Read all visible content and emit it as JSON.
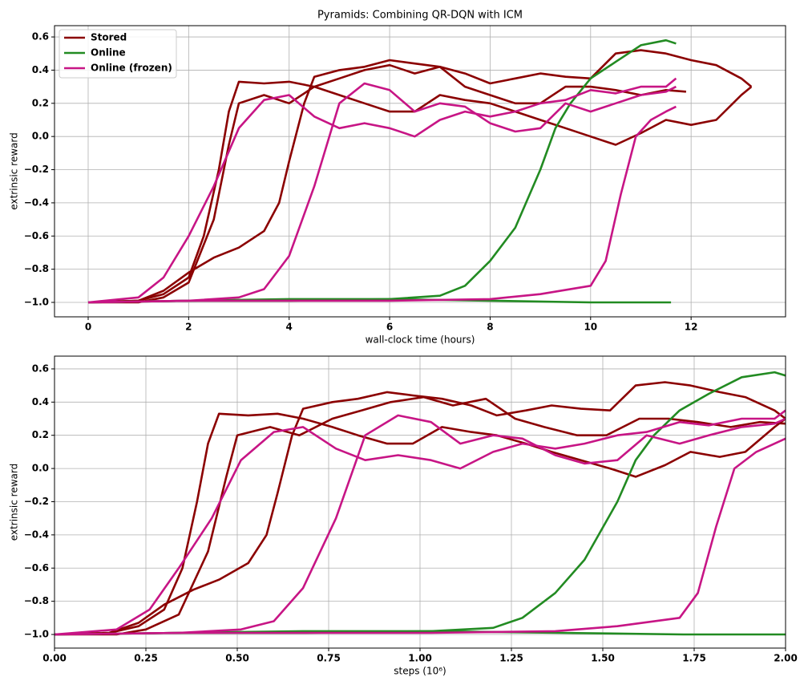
{
  "chart_data": [
    {
      "type": "line",
      "title": "Pyramids: Combining QR-DQN with ICM",
      "xlabel": "wall-clock time (hours)",
      "ylabel": "extrinsic reward",
      "xlim": [
        -0.67,
        13.88
      ],
      "ylim": [
        -1.087,
        0.668
      ],
      "xticks": [
        0,
        2,
        4,
        6,
        8,
        10,
        12
      ],
      "yticks": [
        {
          "value": -1.0,
          "label": "−1.0"
        },
        {
          "value": -0.8,
          "label": "−0.8"
        },
        {
          "value": -0.6,
          "label": "−0.6"
        },
        {
          "value": -0.4,
          "label": "−0.4"
        },
        {
          "value": -0.2,
          "label": "−0.2"
        },
        {
          "value": 0.0,
          "label": "0.0"
        },
        {
          "value": 0.2,
          "label": "0.2"
        },
        {
          "value": 0.4,
          "label": "0.4"
        },
        {
          "value": 0.6,
          "label": "0.6"
        }
      ],
      "grid": true,
      "legend": "upper left",
      "series": [
        {
          "name": "Stored",
          "color": "#8b0000",
          "runs": [
            {
              "x": [
                0,
                1,
                1.5,
                2,
                2.3,
                2.6,
                2.8,
                3,
                3.5,
                4,
                4.5,
                5,
                5.5,
                6,
                6.5,
                7,
                7.5,
                8,
                8.5,
                9,
                9.5,
                10,
                10.5,
                11,
                11.5,
                12,
                12.5,
                13,
                13.2
              ],
              "values": [
                -1,
                -0.99,
                -0.95,
                -0.85,
                -0.6,
                -0.2,
                0.15,
                0.33,
                0.32,
                0.33,
                0.3,
                0.25,
                0.2,
                0.15,
                0.15,
                0.25,
                0.22,
                0.2,
                0.15,
                0.1,
                0.05,
                0.0,
                -0.05,
                0.02,
                0.1,
                0.07,
                0.1,
                0.25,
                0.3
              ]
            },
            {
              "x": [
                0,
                1,
                1.5,
                2,
                2.5,
                2.8,
                3,
                3.5,
                4,
                4.5,
                5,
                5.5,
                6,
                6.5,
                7,
                7.5,
                8,
                8.5,
                9,
                9.5,
                10,
                10.5,
                11,
                11.5,
                11.9
              ],
              "values": [
                -1,
                -1,
                -0.97,
                -0.88,
                -0.5,
                -0.05,
                0.2,
                0.25,
                0.2,
                0.3,
                0.35,
                0.4,
                0.43,
                0.38,
                0.42,
                0.3,
                0.25,
                0.2,
                0.2,
                0.3,
                0.3,
                0.28,
                0.25,
                0.28,
                0.27
              ]
            },
            {
              "x": [
                0,
                1,
                1.5,
                2,
                2.5,
                3,
                3.5,
                3.8,
                4,
                4.3,
                4.5,
                5,
                5.5,
                6,
                6.5,
                7,
                7.5,
                8,
                8.5,
                9,
                9.5,
                10,
                10.5,
                11,
                11.5,
                12,
                12.5,
                13,
                13.2
              ],
              "values": [
                -1,
                -0.99,
                -0.93,
                -0.82,
                -0.73,
                -0.67,
                -0.57,
                -0.4,
                -0.15,
                0.2,
                0.36,
                0.4,
                0.42,
                0.46,
                0.44,
                0.42,
                0.38,
                0.32,
                0.35,
                0.38,
                0.36,
                0.35,
                0.5,
                0.52,
                0.5,
                0.46,
                0.43,
                0.35,
                0.3
              ]
            }
          ]
        },
        {
          "name": "Online",
          "color": "#228b22",
          "runs": [
            {
              "x": [
                0,
                2,
                4,
                6,
                7,
                7.5,
                8,
                8.5,
                9,
                9.3,
                9.6,
                10,
                10.5,
                11,
                11.5,
                11.7
              ],
              "values": [
                -1,
                -0.99,
                -0.98,
                -0.98,
                -0.96,
                -0.9,
                -0.75,
                -0.55,
                -0.2,
                0.05,
                0.2,
                0.35,
                0.45,
                0.55,
                0.58,
                0.56
              ]
            },
            {
              "x": [
                0,
                2,
                4,
                6,
                8,
                10,
                11.6
              ],
              "values": [
                -1,
                -0.99,
                -0.99,
                -0.98,
                -0.99,
                -1,
                -1
              ]
            }
          ]
        },
        {
          "name": "Online (frozen)",
          "color": "#c71585",
          "runs": [
            {
              "x": [
                0,
                1,
                1.5,
                2,
                2.5,
                3,
                3.5,
                4,
                4.5,
                5,
                5.5,
                6,
                6.5,
                7,
                7.5,
                8,
                8.5,
                9,
                9.5,
                10,
                10.5,
                11,
                11.5,
                11.7
              ],
              "values": [
                -1,
                -0.97,
                -0.85,
                -0.6,
                -0.3,
                0.05,
                0.22,
                0.25,
                0.12,
                0.05,
                0.08,
                0.05,
                0.0,
                0.1,
                0.15,
                0.12,
                0.15,
                0.2,
                0.22,
                0.28,
                0.26,
                0.3,
                0.3,
                0.35
              ]
            },
            {
              "x": [
                0,
                2,
                3,
                3.5,
                4,
                4.5,
                5,
                5.5,
                6,
                6.5,
                7,
                7.5,
                8,
                8.5,
                9,
                9.5,
                10,
                10.5,
                11,
                11.5,
                11.7
              ],
              "values": [
                -1,
                -0.99,
                -0.97,
                -0.92,
                -0.72,
                -0.3,
                0.2,
                0.32,
                0.28,
                0.15,
                0.2,
                0.18,
                0.08,
                0.03,
                0.05,
                0.2,
                0.15,
                0.2,
                0.25,
                0.27,
                0.3
              ]
            },
            {
              "x": [
                0,
                2,
                4,
                6,
                8,
                9,
                10,
                10.3,
                10.6,
                10.9,
                11.2,
                11.5,
                11.7
              ],
              "values": [
                -1,
                -0.99,
                -0.99,
                -0.99,
                -0.98,
                -0.95,
                -0.9,
                -0.75,
                -0.35,
                0.0,
                0.1,
                0.15,
                0.18
              ]
            }
          ]
        }
      ]
    },
    {
      "type": "line",
      "xlabel": "steps (10⁶)",
      "ylabel": "extrinsic reward",
      "xlim": [
        0,
        2
      ],
      "ylim": [
        -1.082,
        0.677
      ],
      "xticks": [
        {
          "value": 0,
          "label": "0.00"
        },
        {
          "value": 0.25,
          "label": "0.25"
        },
        {
          "value": 0.5,
          "label": "0.50"
        },
        {
          "value": 0.75,
          "label": "0.75"
        },
        {
          "value": 1,
          "label": "1.00"
        },
        {
          "value": 1.25,
          "label": "1.25"
        },
        {
          "value": 1.5,
          "label": "1.50"
        },
        {
          "value": 1.75,
          "label": "1.75"
        },
        {
          "value": 2,
          "label": "2.00"
        }
      ],
      "yticks": [
        {
          "value": -1.0,
          "label": "−1.0"
        },
        {
          "value": -0.8,
          "label": "−0.8"
        },
        {
          "value": -0.6,
          "label": "−0.6"
        },
        {
          "value": -0.4,
          "label": "−0.4"
        },
        {
          "value": -0.2,
          "label": "−0.2"
        },
        {
          "value": 0.0,
          "label": "0.0"
        },
        {
          "value": 0.2,
          "label": "0.2"
        },
        {
          "value": 0.4,
          "label": "0.4"
        },
        {
          "value": 0.6,
          "label": "0.6"
        }
      ],
      "grid": true,
      "series": [
        {
          "color": "#8b0000",
          "runs": [
            {
              "x": [
                0,
                0.15,
                0.23,
                0.3,
                0.35,
                0.39,
                0.42,
                0.45,
                0.53,
                0.61,
                0.68,
                0.76,
                0.83,
                0.91,
                0.98,
                1.06,
                1.14,
                1.21,
                1.29,
                1.36,
                1.44,
                1.52,
                1.59,
                1.67,
                1.74,
                1.82,
                1.89,
                1.97,
                2.0
              ],
              "values": [
                -1,
                -0.99,
                -0.95,
                -0.85,
                -0.6,
                -0.2,
                0.15,
                0.33,
                0.32,
                0.33,
                0.3,
                0.25,
                0.2,
                0.15,
                0.15,
                0.25,
                0.22,
                0.2,
                0.15,
                0.1,
                0.05,
                0.0,
                -0.05,
                0.02,
                0.1,
                0.07,
                0.1,
                0.25,
                0.3
              ]
            },
            {
              "x": [
                0,
                0.17,
                0.25,
                0.34,
                0.42,
                0.47,
                0.5,
                0.59,
                0.67,
                0.76,
                0.84,
                0.92,
                1.01,
                1.09,
                1.18,
                1.26,
                1.34,
                1.43,
                1.51,
                1.6,
                1.68,
                1.76,
                1.85,
                1.93,
                2.0
              ],
              "values": [
                -1,
                -1,
                -0.97,
                -0.88,
                -0.5,
                -0.05,
                0.2,
                0.25,
                0.2,
                0.3,
                0.35,
                0.4,
                0.43,
                0.38,
                0.42,
                0.3,
                0.25,
                0.2,
                0.2,
                0.3,
                0.3,
                0.28,
                0.25,
                0.28,
                0.27
              ]
            },
            {
              "x": [
                0,
                0.15,
                0.23,
                0.3,
                0.38,
                0.45,
                0.53,
                0.58,
                0.61,
                0.65,
                0.68,
                0.76,
                0.83,
                0.91,
                0.98,
                1.06,
                1.14,
                1.21,
                1.29,
                1.36,
                1.44,
                1.52,
                1.59,
                1.67,
                1.74,
                1.82,
                1.89,
                1.97,
                2.0
              ],
              "values": [
                -1,
                -0.99,
                -0.93,
                -0.82,
                -0.73,
                -0.67,
                -0.57,
                -0.4,
                -0.15,
                0.2,
                0.36,
                0.4,
                0.42,
                0.46,
                0.44,
                0.42,
                0.38,
                0.32,
                0.35,
                0.38,
                0.36,
                0.35,
                0.5,
                0.52,
                0.5,
                0.46,
                0.43,
                0.35,
                0.3
              ]
            }
          ]
        },
        {
          "color": "#228b22",
          "runs": [
            {
              "x": [
                0,
                0.34,
                0.68,
                1.03,
                1.2,
                1.28,
                1.37,
                1.45,
                1.54,
                1.59,
                1.64,
                1.71,
                1.79,
                1.88,
                1.97,
                2.0
              ],
              "values": [
                -1,
                -0.99,
                -0.98,
                -0.98,
                -0.96,
                -0.9,
                -0.75,
                -0.55,
                -0.2,
                0.05,
                0.2,
                0.35,
                0.45,
                0.55,
                0.58,
                0.56
              ]
            },
            {
              "x": [
                0,
                0.34,
                0.69,
                1.03,
                1.38,
                1.72,
                2.0
              ],
              "values": [
                -1,
                -0.99,
                -0.99,
                -0.98,
                -0.99,
                -1,
                -1
              ]
            }
          ]
        },
        {
          "color": "#c71585",
          "runs": [
            {
              "x": [
                0,
                0.17,
                0.26,
                0.34,
                0.43,
                0.51,
                0.6,
                0.68,
                0.77,
                0.85,
                0.94,
                1.03,
                1.11,
                1.2,
                1.28,
                1.37,
                1.45,
                1.54,
                1.62,
                1.71,
                1.79,
                1.88,
                1.97,
                2.0
              ],
              "values": [
                -1,
                -0.97,
                -0.85,
                -0.6,
                -0.3,
                0.05,
                0.22,
                0.25,
                0.12,
                0.05,
                0.08,
                0.05,
                0.0,
                0.1,
                0.15,
                0.12,
                0.15,
                0.2,
                0.22,
                0.28,
                0.26,
                0.3,
                0.3,
                0.35
              ]
            },
            {
              "x": [
                0,
                0.34,
                0.51,
                0.6,
                0.68,
                0.77,
                0.85,
                0.94,
                1.03,
                1.11,
                1.2,
                1.28,
                1.37,
                1.45,
                1.54,
                1.62,
                1.71,
                1.79,
                1.88,
                1.97,
                2.0
              ],
              "values": [
                -1,
                -0.99,
                -0.97,
                -0.92,
                -0.72,
                -0.3,
                0.2,
                0.32,
                0.28,
                0.15,
                0.2,
                0.18,
                0.08,
                0.03,
                0.05,
                0.2,
                0.15,
                0.2,
                0.25,
                0.27,
                0.3
              ]
            },
            {
              "x": [
                0,
                0.34,
                0.68,
                1.03,
                1.37,
                1.54,
                1.71,
                1.76,
                1.81,
                1.86,
                1.92,
                1.97,
                2.0
              ],
              "values": [
                -1,
                -0.99,
                -0.99,
                -0.99,
                -0.98,
                -0.95,
                -0.9,
                -0.75,
                -0.35,
                0.0,
                0.1,
                0.15,
                0.18
              ]
            }
          ]
        }
      ]
    }
  ]
}
